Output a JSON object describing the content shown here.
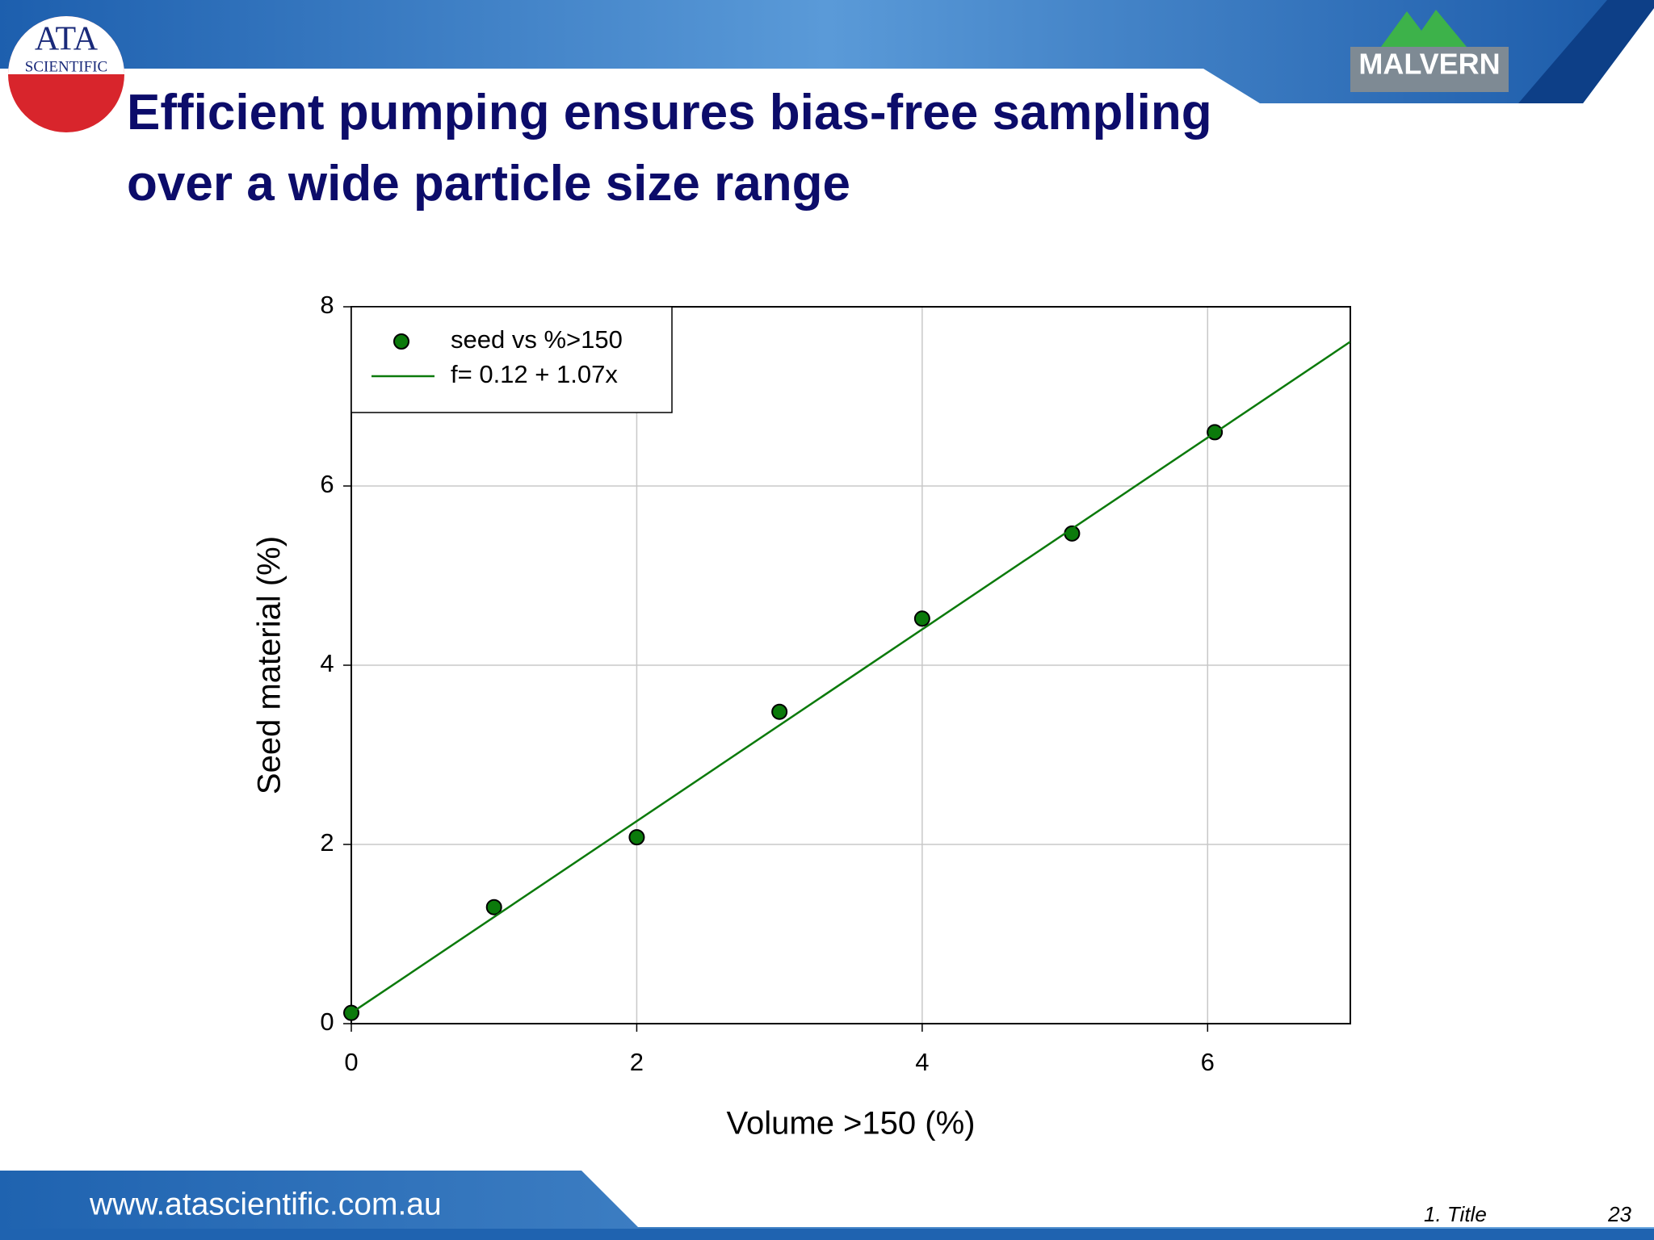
{
  "header": {
    "left_logo": {
      "line1": "ATA",
      "line2": "SCIENTIFIC"
    },
    "right_logo": "MALVERN"
  },
  "chart_data": {
    "type": "scatter",
    "title": "Efficient pumping ensures bias-free sampling over a wide particle size range",
    "x_label": "Volume >150 (%)",
    "y_label": "Seed material (%)",
    "xlim": [
      0,
      7
    ],
    "ylim": [
      0,
      8
    ],
    "xticks": [
      0,
      2,
      4,
      6
    ],
    "yticks": [
      0,
      2,
      4,
      6,
      8
    ],
    "grid": true,
    "legend": "upper left",
    "series": [
      {
        "name": "seed vs %>150",
        "type": "scatter",
        "color": "#0b7a0b",
        "x": [
          0,
          1,
          2,
          3,
          4,
          5.05,
          6.05
        ],
        "values": [
          0.12,
          1.3,
          2.08,
          3.48,
          4.52,
          5.47,
          6.6
        ]
      },
      {
        "name": "f= 0.12 + 1.07x",
        "type": "line",
        "color": "#0b7a0b",
        "x": [
          0,
          7
        ],
        "values": [
          0.12,
          7.61
        ]
      }
    ]
  },
  "footer": {
    "url": "www.atascientific.com.au",
    "section": "1. Title",
    "page": "23"
  }
}
